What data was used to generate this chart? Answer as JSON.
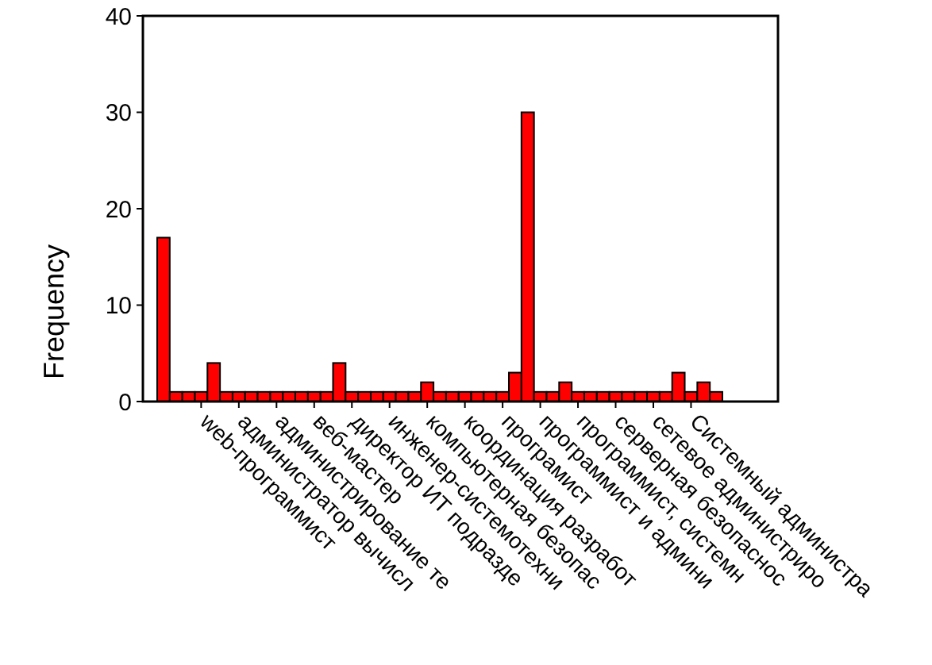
{
  "chart_data": {
    "type": "bar",
    "ylabel": "Frequency",
    "categories": [
      null,
      null,
      null,
      "web-программист",
      null,
      null,
      "администратор вычисл",
      null,
      null,
      "администрирование те",
      null,
      null,
      "веб-мастер",
      null,
      null,
      "директор ИТ подразде",
      null,
      null,
      "инженер-системотехни",
      null,
      null,
      "компьютерная безопас",
      null,
      null,
      "координация разработ",
      null,
      null,
      "програмист",
      null,
      null,
      "программист и админи",
      null,
      null,
      "программист, системн",
      null,
      null,
      "серверная безопаснос",
      null,
      null,
      "сетевое администриро",
      null,
      null,
      "Системный администра",
      null,
      null
    ],
    "values": [
      17,
      1,
      1,
      1,
      4,
      1,
      1,
      1,
      1,
      1,
      1,
      1,
      1,
      1,
      4,
      1,
      1,
      1,
      1,
      1,
      1,
      2,
      1,
      1,
      1,
      1,
      1,
      1,
      3,
      30,
      1,
      1,
      2,
      1,
      1,
      1,
      1,
      1,
      1,
      1,
      1,
      3,
      1,
      2,
      1
    ],
    "color": "#ff0000",
    "ylim": [
      0,
      40
    ],
    "yticks": [
      0,
      10,
      20,
      30,
      40
    ],
    "grid": false
  }
}
